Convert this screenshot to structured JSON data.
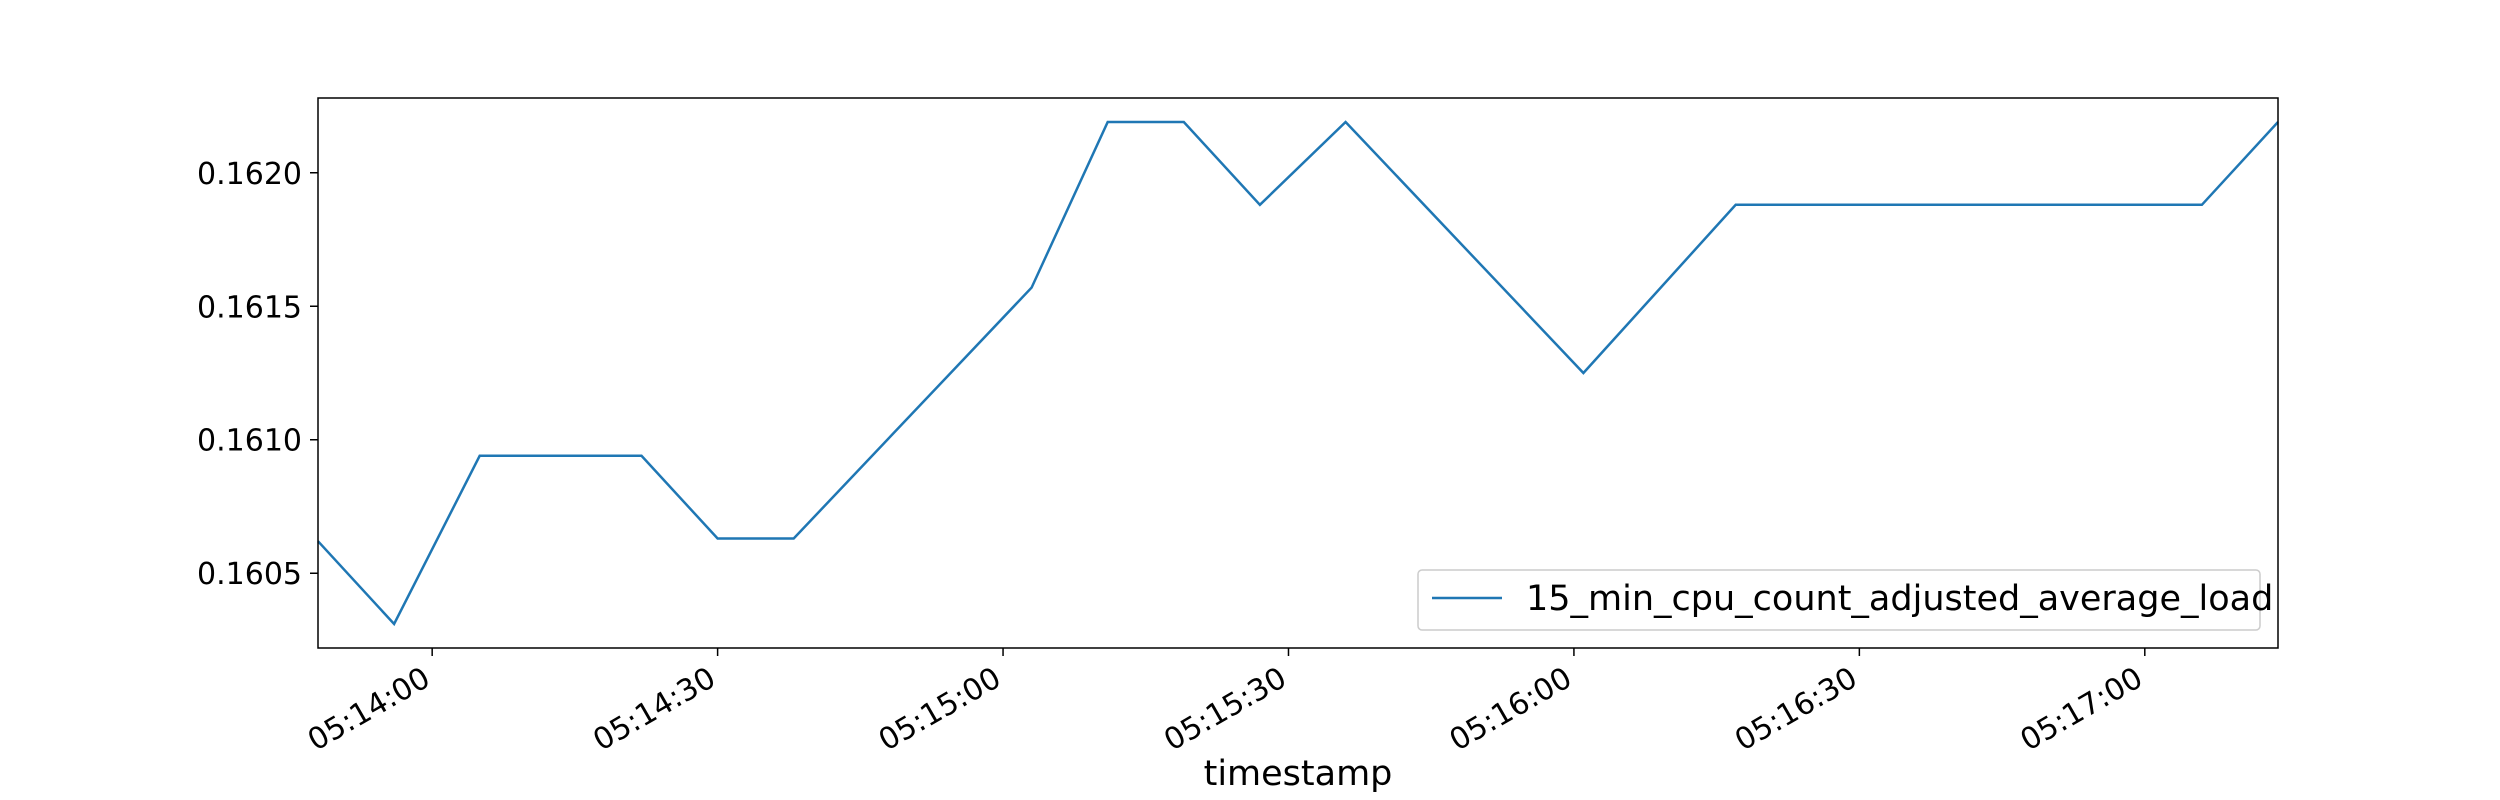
{
  "chart_data": {
    "type": "line",
    "title": "",
    "xlabel": "timestamp",
    "ylabel": "",
    "x_type": "time",
    "xlim": [
      "05:13:48",
      "05:17:14"
    ],
    "ylim": [
      0.16022,
      0.16228
    ],
    "x_ticks": [
      "05:14:00",
      "05:14:30",
      "05:15:00",
      "05:15:30",
      "05:16:00",
      "05:16:30",
      "05:17:00"
    ],
    "y_ticks": [
      "0.1605",
      "0.1610",
      "0.1615",
      "0.1620"
    ],
    "grid": false,
    "legend_position": "lower right",
    "line_color": "#1f77b4",
    "series": [
      {
        "name": "15_min_cpu_count_adjusted_average_load",
        "x": [
          "05:13:48",
          "05:13:56",
          "05:14:05",
          "05:14:22",
          "05:14:30",
          "05:14:38",
          "05:15:03",
          "05:15:11",
          "05:15:19",
          "05:15:27",
          "05:15:36",
          "05:16:01",
          "05:16:17",
          "05:17:06",
          "05:17:14"
        ],
        "y": [
          0.16062,
          0.16031,
          0.16094,
          0.16094,
          0.16063,
          0.16063,
          0.16157,
          0.16219,
          0.16219,
          0.16188,
          0.16219,
          0.16125,
          0.16188,
          0.16188,
          0.16219
        ]
      }
    ]
  }
}
